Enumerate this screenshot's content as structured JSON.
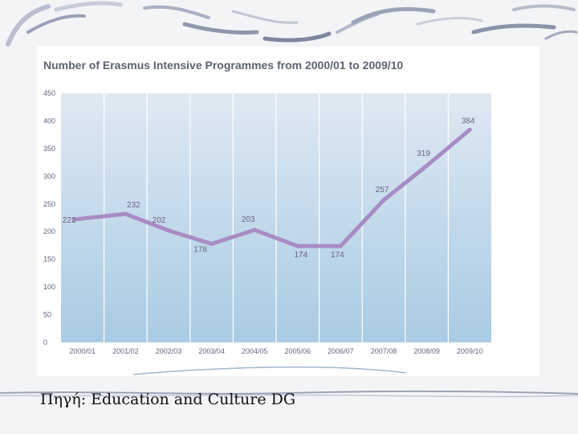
{
  "colors": {
    "title": "#5a6370",
    "line": "#a88cc4",
    "label": "#6b6080",
    "plot_top": "#dfe9f3",
    "plot_bottom": "#a9cbe3",
    "caption": "#111111"
  },
  "source": {
    "caption": "Πηγή: Education and Culture DG"
  },
  "chart_data": {
    "type": "line",
    "title": "Number of Erasmus Intensive Programmes from 2000/01 to 2009/10",
    "xlabel": "",
    "ylabel": "",
    "ylim": [
      0,
      450
    ],
    "yticks": [
      "0",
      "50",
      "100",
      "150",
      "200",
      "250",
      "300",
      "350",
      "400",
      "450"
    ],
    "grid": true,
    "categories": [
      "2000/01",
      "2001/02",
      "2002/03",
      "2003/04",
      "2004/05",
      "2005/06",
      "2006/07",
      "2007/08",
      "2008/09",
      "2009/10"
    ],
    "series": [
      {
        "name": "Intensive Programmes",
        "x": [
          0.3,
          1.5,
          2.5,
          3.5,
          4.5,
          5.5,
          6.5,
          7.5,
          8.5,
          9.5
        ],
        "values": [
          222,
          232,
          202,
          178,
          203,
          174,
          174,
          257,
          319,
          384
        ]
      }
    ],
    "data_labels": [
      "222",
      "232",
      "202",
      "178",
      "203",
      "174",
      "174",
      "257",
      "319",
      "384"
    ]
  }
}
